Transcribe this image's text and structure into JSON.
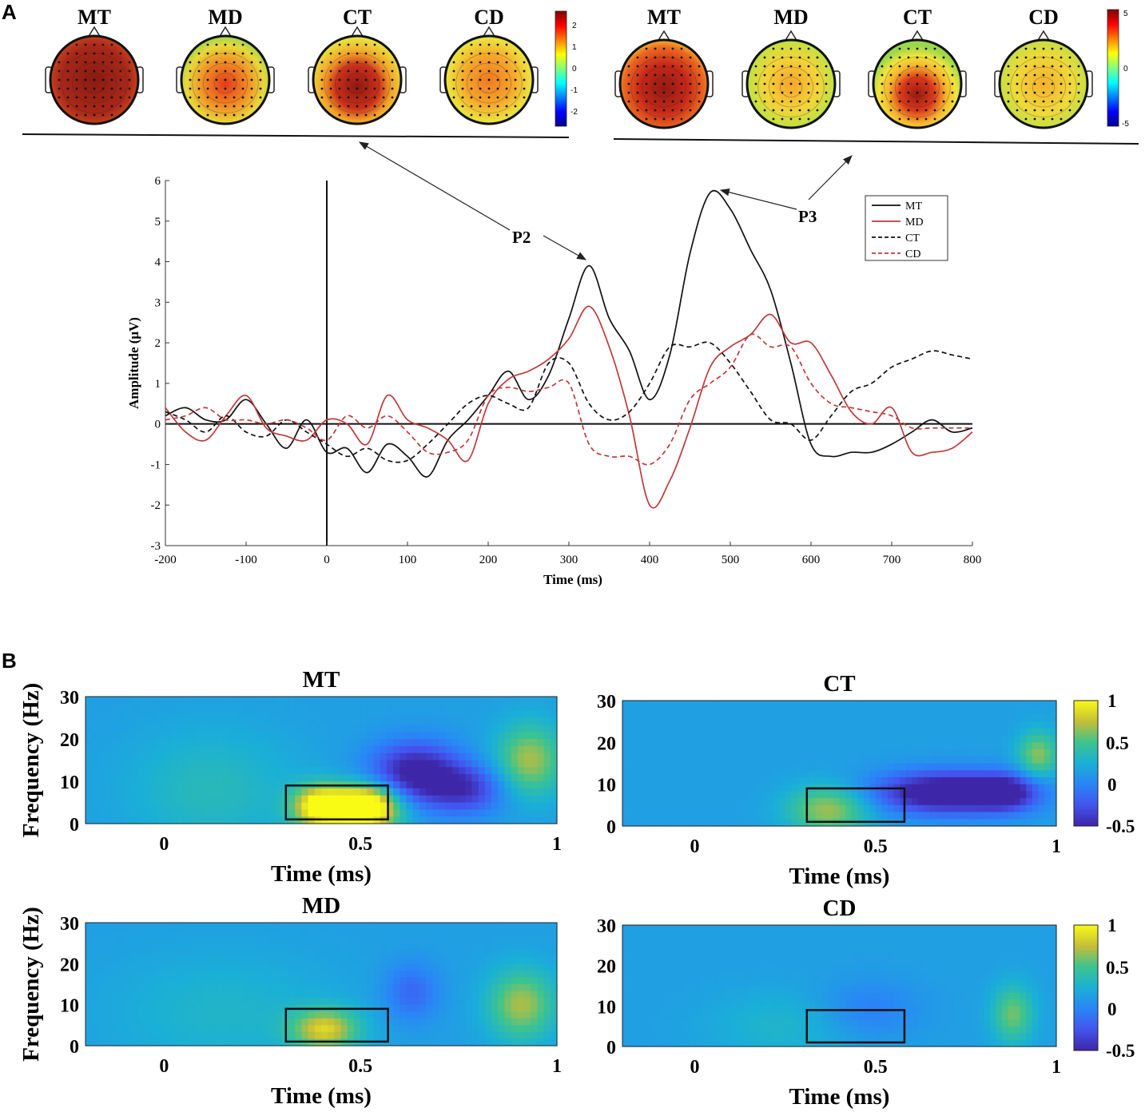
{
  "panel_a": {
    "letter": "A",
    "topomap_labels_p2": [
      "MT",
      "MD",
      "CT",
      "CD"
    ],
    "topomap_labels_p3": [
      "MT",
      "MD",
      "CT",
      "CD"
    ],
    "colorbar_p2": {
      "ticks": [
        "2",
        "1",
        "0",
        "-1",
        "-2"
      ],
      "range": [
        -2.5,
        2.5
      ]
    },
    "colorbar_p3": {
      "ticks": [
        "5",
        "0",
        "-5"
      ],
      "range": [
        -5,
        5
      ]
    },
    "annotations": {
      "p2": "P2",
      "p3": "P3"
    }
  },
  "panel_b": {
    "letter": "B",
    "colorbar_ticks": [
      "1",
      "0.5",
      "0",
      "-0.5"
    ]
  },
  "chart_data": [
    {
      "type": "line",
      "title": "",
      "xlabel": "Time (ms)",
      "ylabel": "Amplitude (μV)",
      "xlim": [
        -200,
        800
      ],
      "ylim": [
        -3,
        6
      ],
      "xticks": [
        -200,
        -100,
        0,
        100,
        200,
        300,
        400,
        500,
        600,
        700,
        800
      ],
      "yticks": [
        -3,
        -2,
        -1,
        0,
        1,
        2,
        3,
        4,
        5,
        6
      ],
      "legend_position": "top-right",
      "series": [
        {
          "name": "MT",
          "color": "#111111",
          "style": "solid",
          "x": [
            -200,
            -175,
            -150,
            -125,
            -100,
            -75,
            -50,
            -25,
            0,
            25,
            50,
            75,
            100,
            125,
            150,
            175,
            200,
            225,
            250,
            275,
            300,
            325,
            350,
            375,
            400,
            425,
            450,
            475,
            500,
            525,
            550,
            575,
            600,
            625,
            650,
            675,
            700,
            725,
            750,
            775,
            800
          ],
          "y": [
            0.2,
            0.4,
            0.1,
            0.1,
            0.6,
            0.0,
            -0.6,
            0.1,
            -0.7,
            -0.6,
            -1.2,
            -0.5,
            -0.8,
            -1.3,
            -0.4,
            0.1,
            0.7,
            1.3,
            0.6,
            1.2,
            2.6,
            3.9,
            2.6,
            1.8,
            0.6,
            1.7,
            4.2,
            5.7,
            5.3,
            4.3,
            3.3,
            1.5,
            -0.5,
            -0.8,
            -0.7,
            -0.7,
            -0.5,
            -0.2,
            0.1,
            -0.2,
            -0.1
          ]
        },
        {
          "name": "MD",
          "color": "#c0393b",
          "style": "solid",
          "x": [
            -200,
            -175,
            -150,
            -125,
            -100,
            -75,
            -50,
            -25,
            0,
            25,
            50,
            75,
            100,
            125,
            150,
            175,
            200,
            225,
            250,
            275,
            300,
            325,
            350,
            375,
            400,
            425,
            450,
            475,
            500,
            525,
            550,
            575,
            600,
            625,
            650,
            675,
            700,
            725,
            750,
            775,
            800
          ],
          "y": [
            0.4,
            -0.2,
            -0.4,
            0.2,
            0.7,
            -0.1,
            -0.3,
            -0.4,
            0.1,
            0.0,
            -0.5,
            0.7,
            0.1,
            -0.1,
            -0.4,
            -0.9,
            0.5,
            1.1,
            1.3,
            1.6,
            2.1,
            2.9,
            1.9,
            0.2,
            -2.0,
            -1.4,
            -0.1,
            1.4,
            1.9,
            2.2,
            2.7,
            2.0,
            2.0,
            1.2,
            0.3,
            0.0,
            0.4,
            -0.7,
            -0.7,
            -0.6,
            -0.2
          ]
        },
        {
          "name": "CT",
          "color": "#111111",
          "style": "dashed",
          "x": [
            -200,
            -175,
            -150,
            -125,
            -100,
            -75,
            -50,
            -25,
            0,
            25,
            50,
            75,
            100,
            125,
            150,
            175,
            200,
            225,
            250,
            275,
            300,
            325,
            350,
            375,
            400,
            425,
            450,
            475,
            500,
            525,
            550,
            575,
            600,
            625,
            650,
            675,
            700,
            725,
            750,
            775,
            800
          ],
          "y": [
            0.3,
            0.1,
            -0.2,
            0.2,
            -0.2,
            -0.3,
            0.1,
            -0.2,
            -0.5,
            -0.8,
            -0.6,
            -0.9,
            -0.9,
            -0.5,
            0.0,
            0.5,
            0.7,
            0.5,
            0.4,
            1.5,
            1.5,
            0.5,
            0.1,
            0.3,
            1.0,
            1.9,
            1.9,
            2.0,
            1.5,
            0.8,
            0.1,
            0.0,
            -0.4,
            0.2,
            0.8,
            1.0,
            1.4,
            1.6,
            1.8,
            1.7,
            1.6
          ]
        },
        {
          "name": "CD",
          "color": "#c0393b",
          "style": "dashed",
          "x": [
            -200,
            -175,
            -150,
            -125,
            -100,
            -75,
            -50,
            -25,
            0,
            25,
            50,
            75,
            100,
            125,
            150,
            175,
            200,
            225,
            250,
            275,
            300,
            325,
            350,
            375,
            400,
            425,
            450,
            475,
            500,
            525,
            550,
            575,
            600,
            625,
            650,
            675,
            700,
            725,
            750,
            775,
            800
          ],
          "y": [
            0.1,
            0.2,
            0.4,
            0.1,
            0.1,
            0.0,
            0.1,
            -0.1,
            -0.4,
            0.2,
            -0.1,
            0.2,
            -0.2,
            -0.7,
            -0.7,
            -0.4,
            0.7,
            0.9,
            0.8,
            0.9,
            1.0,
            -0.5,
            -0.8,
            -0.8,
            -1.0,
            -0.5,
            0.6,
            1.0,
            1.4,
            2.2,
            1.9,
            1.9,
            1.0,
            0.5,
            0.4,
            0.3,
            0.2,
            -0.1,
            -0.1,
            -0.1,
            -0.1
          ]
        }
      ]
    },
    {
      "type": "heatmap",
      "title": "MT",
      "xlabel": "Time (ms)",
      "ylabel": "Frequency (Hz)",
      "xlim": [
        -0.2,
        1.0
      ],
      "ylim": [
        0,
        30
      ],
      "clim": [
        -0.5,
        1
      ],
      "xticks": [
        "0",
        "0.5",
        "1"
      ],
      "yticks": [
        "0",
        "10",
        "20",
        "30"
      ],
      "highlight_box": {
        "t": [
          0.31,
          0.57
        ],
        "f": [
          1,
          9
        ]
      },
      "blobs": [
        {
          "t": 0.4,
          "f": 4,
          "v": 1.0,
          "st": 0.05,
          "sf": 3.5
        },
        {
          "t": 0.5,
          "f": 4,
          "v": 0.95,
          "st": 0.05,
          "sf": 3.5
        },
        {
          "t": 0.56,
          "f": 4,
          "v": 0.45,
          "st": 0.05,
          "sf": 4
        },
        {
          "t": 0.64,
          "f": 12,
          "v": -0.75,
          "st": 0.08,
          "sf": 5
        },
        {
          "t": 0.77,
          "f": 8,
          "v": -0.5,
          "st": 0.07,
          "sf": 4
        },
        {
          "t": 0.93,
          "f": 15,
          "v": 0.55,
          "st": 0.06,
          "sf": 6
        },
        {
          "t": 0.12,
          "f": 8,
          "v": 0.2,
          "st": 0.15,
          "sf": 10
        }
      ]
    },
    {
      "type": "heatmap",
      "title": "CT",
      "xlabel": "Time (ms)",
      "ylabel": "",
      "xlim": [
        -0.2,
        1.0
      ],
      "ylim": [
        0,
        30
      ],
      "clim": [
        -0.5,
        1
      ],
      "xticks": [
        "0",
        "0.5",
        "1"
      ],
      "yticks": [
        "0",
        "10",
        "20",
        "30"
      ],
      "highlight_box": {
        "t": [
          0.31,
          0.58
        ],
        "f": [
          1,
          9
        ]
      },
      "blobs": [
        {
          "t": 0.37,
          "f": 4,
          "v": 0.55,
          "st": 0.08,
          "sf": 4
        },
        {
          "t": 0.7,
          "f": 8,
          "v": -0.9,
          "st": 0.14,
          "sf": 3.5
        },
        {
          "t": 0.86,
          "f": 8,
          "v": -0.5,
          "st": 0.06,
          "sf": 3
        },
        {
          "t": 0.95,
          "f": 17,
          "v": 0.5,
          "st": 0.04,
          "sf": 4
        }
      ]
    },
    {
      "type": "heatmap",
      "title": "MD",
      "xlabel": "Time (ms)",
      "ylabel": "Frequency (Hz)",
      "xlim": [
        -0.2,
        1.0
      ],
      "ylim": [
        0,
        30
      ],
      "clim": [
        -0.5,
        1
      ],
      "xticks": [
        "0",
        "0.5",
        "1"
      ],
      "yticks": [
        "0",
        "10",
        "20",
        "30"
      ],
      "highlight_box": {
        "t": [
          0.31,
          0.57
        ],
        "f": [
          1,
          9
        ]
      },
      "blobs": [
        {
          "t": 0.41,
          "f": 4,
          "v": 0.65,
          "st": 0.06,
          "sf": 3.5
        },
        {
          "t": 0.63,
          "f": 13,
          "v": -0.3,
          "st": 0.05,
          "sf": 5
        },
        {
          "t": 0.91,
          "f": 10,
          "v": 0.55,
          "st": 0.06,
          "sf": 6
        },
        {
          "t": 0.15,
          "f": 8,
          "v": 0.15,
          "st": 0.2,
          "sf": 10
        }
      ]
    },
    {
      "type": "heatmap",
      "title": "CD",
      "xlabel": "Time (ms)",
      "ylabel": "",
      "xlim": [
        -0.2,
        1.0
      ],
      "ylim": [
        0,
        30
      ],
      "clim": [
        -0.5,
        1
      ],
      "xticks": [
        "0",
        "0.5",
        "1"
      ],
      "yticks": [
        "0",
        "10",
        "20",
        "30"
      ],
      "highlight_box": {
        "t": [
          0.31,
          0.58
        ],
        "f": [
          1,
          9
        ]
      },
      "blobs": [
        {
          "t": 0.48,
          "f": 9,
          "v": -0.2,
          "st": 0.1,
          "sf": 5
        },
        {
          "t": 0.88,
          "f": 8,
          "v": 0.45,
          "st": 0.04,
          "sf": 5
        },
        {
          "t": 0.25,
          "f": 5,
          "v": 0.15,
          "st": 0.15,
          "sf": 6
        }
      ]
    }
  ]
}
